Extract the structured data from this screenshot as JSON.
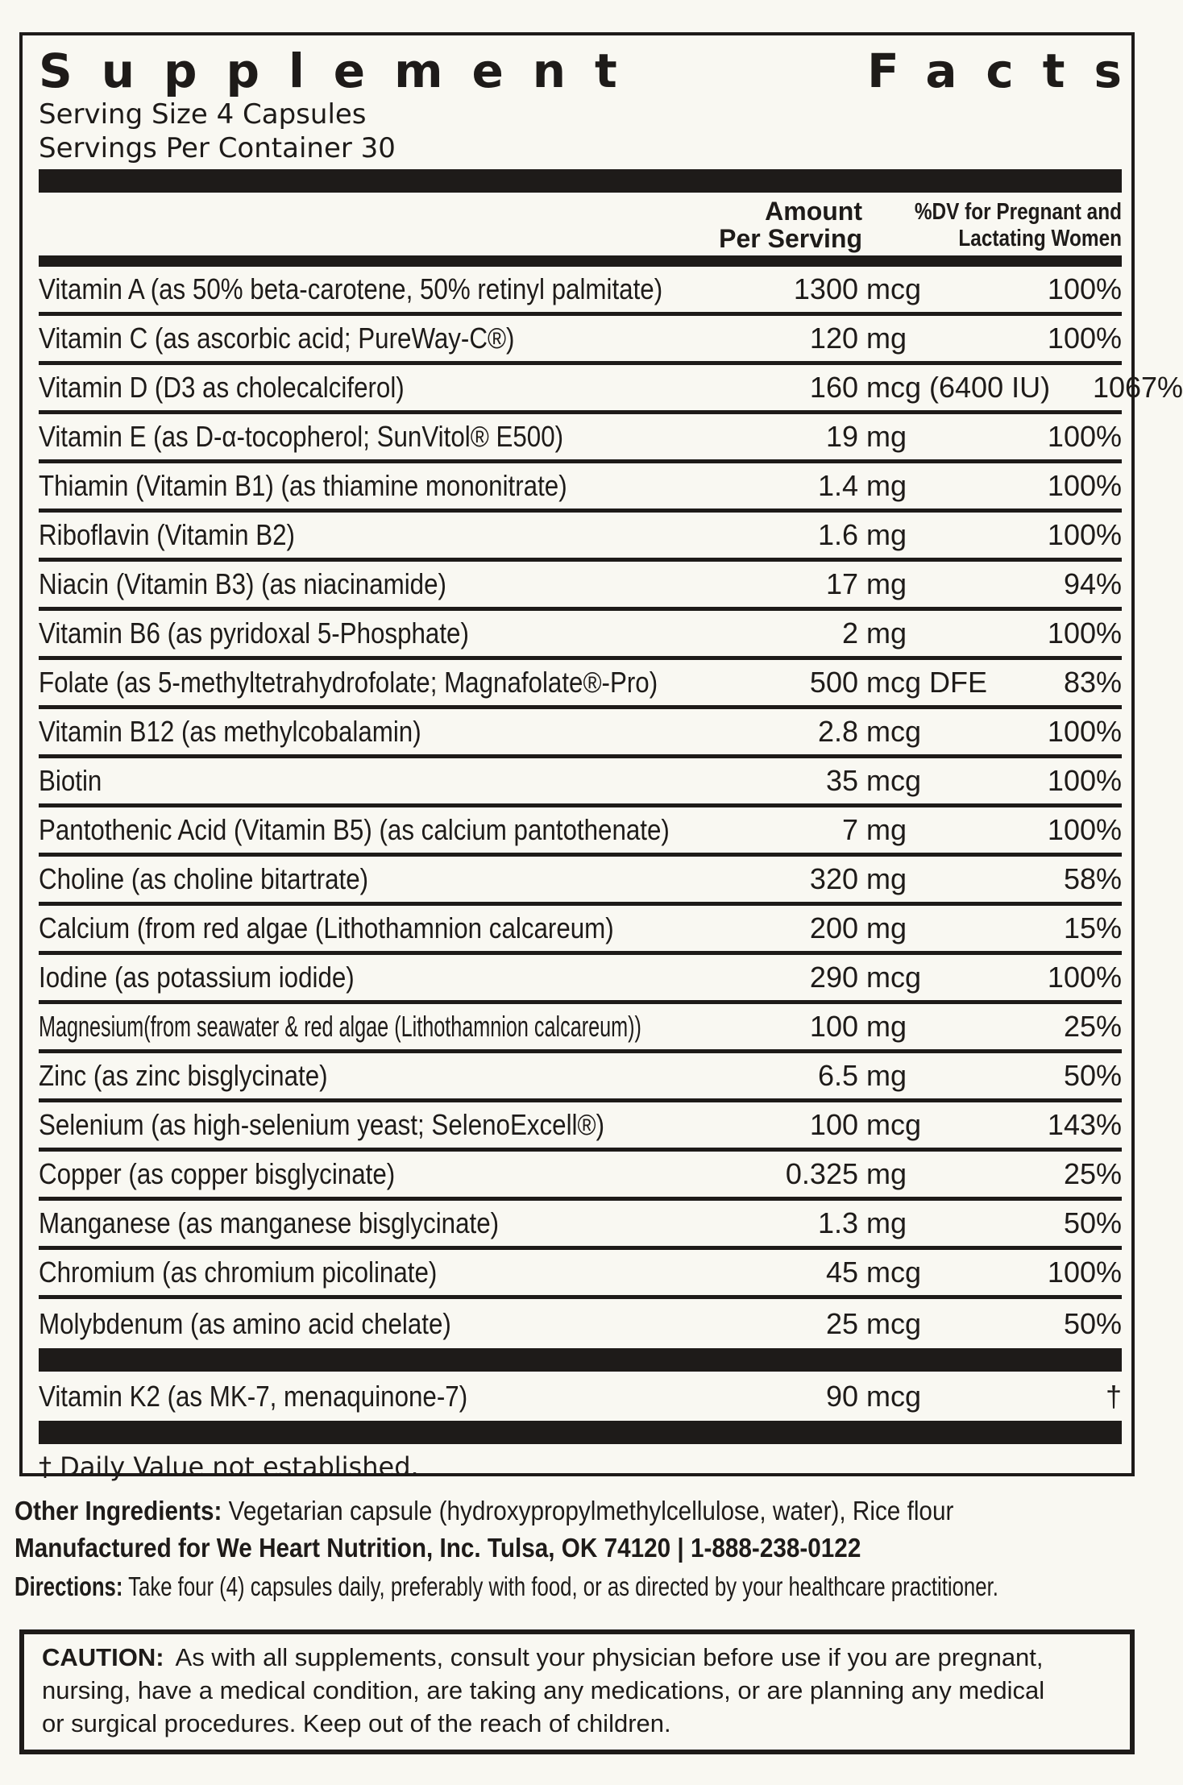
{
  "label": {
    "title_word1": "Supplement",
    "title_word2": "Facts",
    "serving_size": "Serving Size 4 Capsules",
    "servings_per_container": "Servings Per Container 30"
  },
  "table": {
    "header": {
      "amount_line1": "Amount",
      "amount_line2": "Per Serving",
      "dv_line1": "%DV for Pregnant and",
      "dv_line2": "Lactating Women"
    },
    "rows": [
      {
        "name": "Vitamin A (as 50% beta-carotene, 50% retinyl palmitate)",
        "num": "1300",
        "unit": "mcg",
        "dv": "100%"
      },
      {
        "name": "Vitamin C  (as ascorbic acid; PureWay-C®)",
        "num": "120",
        "unit": "mg",
        "dv": "100%"
      },
      {
        "name": "Vitamin D (D3 as cholecalciferol)",
        "num": "160",
        "unit": "mcg (6400 IU)",
        "dv": "1067%"
      },
      {
        "name": "Vitamin E (as D-α-tocopherol; SunVitol® E500)",
        "num": "19",
        "unit": "mg",
        "dv": "100%"
      },
      {
        "name": "Thiamin (Vitamin B1) (as thiamine mononitrate)",
        "num": "1.4",
        "unit": "mg",
        "dv": "100%"
      },
      {
        "name": "Riboflavin (Vitamin B2)",
        "num": "1.6",
        "unit": "mg",
        "dv": "100%"
      },
      {
        "name": "Niacin (Vitamin B3) (as niacinamide)",
        "num": "17",
        "unit": "mg",
        "dv": "94%"
      },
      {
        "name": "Vitamin B6 (as pyridoxal 5-Phosphate)",
        "num": "2",
        "unit": "mg",
        "dv": "100%"
      },
      {
        "name": "Folate  (as 5-methyltetrahydrofolate; Magnafolate®-Pro)",
        "num": "500",
        "unit": "mcg DFE",
        "dv": "83%"
      },
      {
        "name": "Vitamin B12  (as methylcobalamin)",
        "num": "2.8",
        "unit": "mcg",
        "dv": "100%"
      },
      {
        "name": "Biotin",
        "num": "35",
        "unit": "mcg",
        "dv": "100%"
      },
      {
        "name": "Pantothenic Acid (Vitamin B5) (as calcium pantothenate)",
        "num": "7",
        "unit": "mg",
        "dv": "100%"
      },
      {
        "name": "Choline (as choline bitartrate)",
        "num": "320",
        "unit": "mg",
        "dv": "58%"
      },
      {
        "name": "Calcium (from red algae (Lithothamnion calcareum)",
        "num": "200",
        "unit": "mg",
        "dv": "15%"
      },
      {
        "name": "Iodine (as potassium iodide)",
        "num": "290",
        "unit": "mcg",
        "dv": "100%"
      },
      {
        "name": "Magnesium(from seawater & red algae (Lithothamnion calcareum))",
        "num": "100",
        "unit": "mg",
        "dv": "25%",
        "condensed": true
      },
      {
        "name": "Zinc (as zinc bisglycinate)",
        "num": "6.5",
        "unit": "mg",
        "dv": "50%"
      },
      {
        "name": "Selenium (as high-selenium yeast; SelenoExcell®)",
        "num": "100",
        "unit": "mcg",
        "dv": "143%"
      },
      {
        "name": "Copper (as copper bisglycinate)",
        "num": "0.325",
        "unit": "mg",
        "dv": "25%"
      },
      {
        "name": "Manganese (as manganese bisglycinate)",
        "num": "1.3",
        "unit": "mg",
        "dv": "50%"
      },
      {
        "name": "Chromium (as chromium picolinate)",
        "num": "45",
        "unit": "mcg",
        "dv": "100%"
      },
      {
        "name": "Molybdenum (as amino acid chelate)",
        "num": "25",
        "unit": "mcg",
        "dv": "50%"
      }
    ],
    "k2_row": {
      "name": "Vitamin K2 (as MK-7, menaquinone-7)",
      "num": "90",
      "unit": "mcg",
      "dv": "†"
    },
    "footnote": "† Daily Value not established."
  },
  "bottom": {
    "other_ingredients_label": "Other Ingredients:",
    "other_ingredients_text": "Vegetarian capsule (hydroxypropylmethylcellulose, water), Rice flour",
    "manufactured": "Manufactured for We Heart Nutrition, Inc. Tulsa, OK 74120 | 1-888-238-0122",
    "directions_label": "Directions:",
    "directions_text": "Take four (4) capsules daily, preferably with food, or as directed by your healthcare practitioner."
  },
  "caution": {
    "label": "CAUTION:",
    "lines": [
      "As with all supplements, consult your physician before use if you are pregnant,",
      "nursing, have a medical condition, are taking any medications, or are planning any medical",
      "or surgical procedures. Keep out of the reach of children."
    ]
  },
  "colors": {
    "ink": "#1e1b19",
    "paper": "#f9f8f2"
  }
}
